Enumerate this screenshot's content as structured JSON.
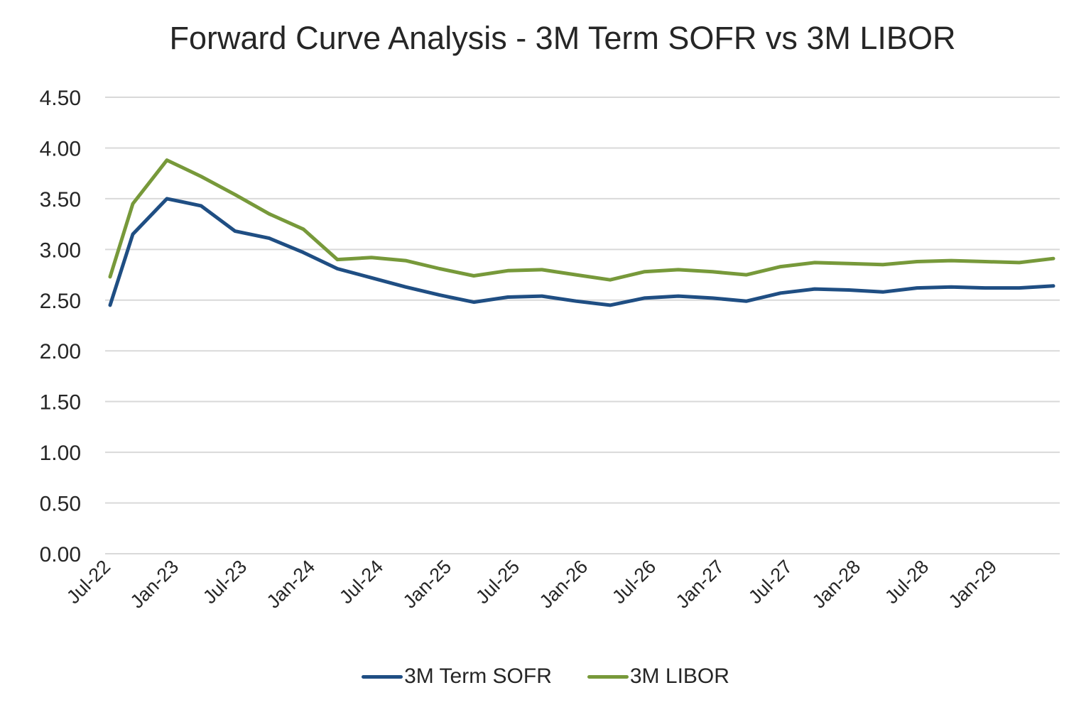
{
  "chart_data": {
    "type": "line",
    "title": "Forward Curve Analysis - 3M Term SOFR vs 3M LIBOR",
    "xlabel": "",
    "ylabel": "",
    "ylim": [
      0,
      4.5
    ],
    "y_ticks": [
      "0.00",
      "0.50",
      "1.00",
      "1.50",
      "2.00",
      "2.50",
      "3.00",
      "3.50",
      "4.00",
      "4.50"
    ],
    "x_tick_labels": [
      "Jul-22",
      "Jan-23",
      "Jul-23",
      "Jan-24",
      "Jul-24",
      "Jan-25",
      "Jul-25",
      "Jan-26",
      "Jul-26",
      "Jan-27",
      "Jul-27",
      "Jan-28",
      "Jul-28",
      "Jan-29"
    ],
    "grid": true,
    "legend_position": "bottom",
    "x": [
      "2022-08",
      "2022-10",
      "2023-01",
      "2023-04",
      "2023-07",
      "2023-10",
      "2024-01",
      "2024-04",
      "2024-07",
      "2024-10",
      "2025-01",
      "2025-04",
      "2025-07",
      "2025-10",
      "2026-01",
      "2026-04",
      "2026-07",
      "2026-10",
      "2027-01",
      "2027-04",
      "2027-07",
      "2027-10",
      "2028-01",
      "2028-04",
      "2028-07",
      "2028-10",
      "2029-01",
      "2029-04",
      "2029-07"
    ],
    "series": [
      {
        "name": "3M Term SOFR",
        "color": "#1f4e83",
        "values": [
          2.45,
          3.15,
          3.5,
          3.43,
          3.18,
          3.11,
          2.97,
          2.81,
          2.72,
          2.63,
          2.55,
          2.48,
          2.53,
          2.54,
          2.49,
          2.45,
          2.52,
          2.54,
          2.52,
          2.49,
          2.57,
          2.61,
          2.6,
          2.58,
          2.62,
          2.63,
          2.62,
          2.62,
          2.64
        ]
      },
      {
        "name": "3M LIBOR",
        "color": "#77993a",
        "values": [
          2.73,
          3.45,
          3.88,
          3.72,
          3.54,
          3.35,
          3.2,
          2.9,
          2.92,
          2.89,
          2.81,
          2.74,
          2.79,
          2.8,
          2.75,
          2.7,
          2.78,
          2.8,
          2.78,
          2.75,
          2.83,
          2.87,
          2.86,
          2.85,
          2.88,
          2.89,
          2.88,
          2.87,
          2.91
        ]
      }
    ]
  }
}
